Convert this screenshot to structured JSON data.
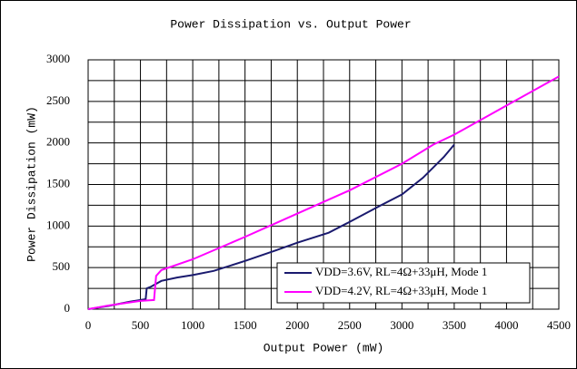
{
  "chart_data": {
    "type": "line",
    "title": "Power Dissipation  vs. Output Power",
    "x_label": "Output Power (mW)",
    "y_label": "Power Dissipation (mW)",
    "xlim": [
      0,
      4500
    ],
    "xticks": [
      0,
      500,
      1000,
      1500,
      2000,
      2500,
      3000,
      3500,
      4000,
      4500
    ],
    "ylim": [
      0,
      3000
    ],
    "yticks": [
      0,
      500,
      1000,
      1500,
      2000,
      2500,
      3000
    ],
    "x_minor_grid": [
      250,
      750,
      1250,
      1750,
      2250,
      2750,
      3250,
      3750,
      4250
    ],
    "y_minor_grid": [
      250,
      750,
      1250,
      1750,
      2250,
      2750
    ],
    "grid": true,
    "legend": "lower right",
    "series": [
      {
        "name": "VDD=3.6V, RL=4Ω+33μH, Mode 1",
        "color": "#1a1a6e",
        "x": [
          0,
          200,
          400,
          550,
          560,
          600,
          700,
          850,
          1000,
          1200,
          1500,
          1800,
          2000,
          2300,
          2500,
          2800,
          3000,
          3200,
          3400,
          3500
        ],
        "values": [
          0,
          40,
          90,
          120,
          250,
          270,
          340,
          380,
          410,
          460,
          580,
          710,
          800,
          920,
          1050,
          1250,
          1380,
          1580,
          1830,
          1980
        ]
      },
      {
        "name": "VDD=4.2V, RL=4Ω+33μH, Mode 1",
        "color": "#ff00ff",
        "x": [
          0,
          200,
          500,
          630,
          650,
          700,
          1000,
          1500,
          2000,
          2500,
          3000,
          3300,
          3500,
          4000,
          4500
        ],
        "values": [
          0,
          45,
          100,
          110,
          400,
          470,
          600,
          870,
          1150,
          1430,
          1750,
          1980,
          2100,
          2450,
          2800
        ]
      }
    ]
  }
}
